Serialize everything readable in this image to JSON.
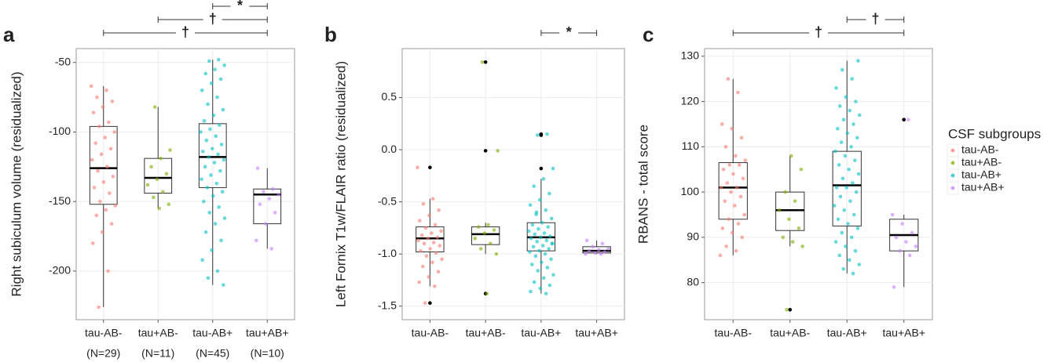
{
  "chart_data": [
    {
      "type": "box",
      "panel": "a",
      "ylabel": "Right subiculum volume (residualized)",
      "categories": [
        "tau-AB-",
        "tau+AB-",
        "tau-AB+",
        "tau+AB+"
      ],
      "n_labels": [
        "(N=29)",
        "(N=11)",
        "(N=45)",
        "(N=10)"
      ],
      "ylim": [
        -235,
        -40
      ],
      "yticks": [
        -50,
        -100,
        -150,
        -200
      ],
      "grid": true,
      "boxes": [
        {
          "whisker_low": -226,
          "q1": -152,
          "median": -126,
          "q3": -96,
          "whisker_high": -67,
          "outliers": []
        },
        {
          "whisker_low": -155,
          "q1": -144,
          "median": -133,
          "q3": -119,
          "whisker_high": -82,
          "outliers": []
        },
        {
          "whisker_low": -210,
          "q1": -140,
          "median": -118,
          "q3": -94,
          "whisker_high": -48,
          "outliers": []
        },
        {
          "whisker_low": -184,
          "q1": -166,
          "median": -145,
          "q3": -141,
          "whisker_high": -126,
          "outliers": []
        }
      ],
      "points": [
        [
          -67,
          -70,
          -75,
          -78,
          -82,
          -86,
          -93,
          -96,
          -100,
          -104,
          -108,
          -112,
          -116,
          -120,
          -125,
          -128,
          -132,
          -136,
          -140,
          -144,
          -150,
          -153,
          -156,
          -160,
          -166,
          -172,
          -180,
          -200,
          -226
        ],
        [
          -82,
          -113,
          -119,
          -125,
          -130,
          -134,
          -138,
          -143,
          -147,
          -152,
          -155
        ],
        [
          -48,
          -49,
          -52,
          -55,
          -58,
          -62,
          -65,
          -70,
          -75,
          -80,
          -84,
          -88,
          -92,
          -95,
          -98,
          -100,
          -103,
          -106,
          -109,
          -112,
          -114,
          -116,
          -118,
          -120,
          -122,
          -125,
          -128,
          -131,
          -134,
          -137,
          -140,
          -143,
          -146,
          -150,
          -154,
          -158,
          -162,
          -166,
          -172,
          -178,
          -185,
          -192,
          -200,
          -205,
          -210
        ],
        [
          -126,
          -141,
          -143,
          -145,
          -148,
          -152,
          -158,
          -166,
          -178,
          -184
        ]
      ],
      "comparisons": [
        {
          "groups": [
            "tau-AB-",
            "tau+AB+"
          ],
          "label": "†"
        },
        {
          "groups": [
            "tau+AB-",
            "tau+AB+"
          ],
          "label": "†"
        },
        {
          "groups": [
            "tau-AB+",
            "tau+AB+"
          ],
          "label": "*"
        }
      ]
    },
    {
      "type": "box",
      "panel": "b",
      "ylabel": "Left Fornix T1w/FLAIR ratio (residualized)",
      "categories": [
        "tau-AB-",
        "tau+AB-",
        "tau-AB+",
        "tau+AB+"
      ],
      "ylim": [
        -1.63,
        0.97
      ],
      "yticks": [
        0.5,
        {
          "value": 0,
          "label": "0.0"
        },
        -0.5,
        {
          "value": -1,
          "label": "-1.0"
        },
        -1.5
      ],
      "grid": true,
      "boxes": [
        {
          "whisker_low": -1.31,
          "q1": -0.98,
          "median": -0.85,
          "q3": -0.74,
          "whisker_high": -0.47,
          "outliers": [
            -0.17,
            -1.47
          ]
        },
        {
          "whisker_low": -1.0,
          "q1": -0.91,
          "median": -0.81,
          "q3": -0.74,
          "whisker_high": -0.7,
          "outliers": [
            0.84,
            -0.01,
            -1.38
          ]
        },
        {
          "whisker_low": -1.38,
          "q1": -0.97,
          "median": -0.84,
          "q3": -0.7,
          "whisker_high": -0.28,
          "outliers": [
            0.15,
            0.14,
            -0.18
          ]
        },
        {
          "whisker_low": -1.0,
          "q1": -0.99,
          "median": -0.97,
          "q3": -0.93,
          "whisker_high": -0.87,
          "outliers": []
        }
      ],
      "points": [
        [
          -0.17,
          -0.47,
          -0.52,
          -0.58,
          -0.63,
          -0.68,
          -0.72,
          -0.75,
          -0.78,
          -0.8,
          -0.82,
          -0.84,
          -0.85,
          -0.87,
          -0.89,
          -0.9,
          -0.92,
          -0.95,
          -0.97,
          -0.99,
          -1.02,
          -1.05,
          -1.08,
          -1.12,
          -1.17,
          -1.22,
          -1.27,
          -1.31,
          -1.47
        ],
        [
          0.84,
          -0.01,
          -0.72,
          -0.74,
          -0.77,
          -0.8,
          -0.85,
          -0.9,
          -0.95,
          -1.0,
          -1.38
        ],
        [
          0.15,
          0.14,
          -0.18,
          -0.28,
          -0.35,
          -0.42,
          -0.48,
          -0.53,
          -0.58,
          -0.62,
          -0.66,
          -0.7,
          -0.72,
          -0.74,
          -0.76,
          -0.78,
          -0.8,
          -0.81,
          -0.83,
          -0.84,
          -0.85,
          -0.87,
          -0.88,
          -0.9,
          -0.92,
          -0.93,
          -0.95,
          -0.97,
          -0.98,
          -1.0,
          -1.02,
          -1.05,
          -1.08,
          -1.1,
          -1.13,
          -1.16,
          -1.2,
          -1.23,
          -1.27,
          -1.3,
          -1.33,
          -1.36,
          -1.38,
          -0.6,
          -0.9
        ],
        [
          -0.87,
          -0.9,
          -0.93,
          -0.95,
          -0.96,
          -0.97,
          -0.98,
          -0.99,
          -1.0,
          -1.0
        ]
      ],
      "comparisons": [
        {
          "groups": [
            "tau-AB+",
            "tau+AB+"
          ],
          "label": "*"
        }
      ]
    },
    {
      "type": "box",
      "panel": "c",
      "ylabel": "RBANS - total score",
      "categories": [
        "tau-AB-",
        "tau+AB-",
        "tau-AB+",
        "tau+AB+"
      ],
      "ylim": [
        71.8,
        131.7
      ],
      "yticks": [
        130,
        120,
        110,
        100,
        90,
        80
      ],
      "grid": true,
      "boxes": [
        {
          "whisker_low": 86,
          "q1": 94,
          "median": 101,
          "q3": 106.5,
          "whisker_high": 125,
          "outliers": []
        },
        {
          "whisker_low": 88,
          "q1": 91.5,
          "median": 96,
          "q3": 100,
          "whisker_high": 108,
          "outliers": [
            74
          ]
        },
        {
          "whisker_low": 82,
          "q1": 92.5,
          "median": 101.5,
          "q3": 109,
          "whisker_high": 129,
          "outliers": []
        },
        {
          "whisker_low": 79,
          "q1": 87,
          "median": 90.5,
          "q3": 94,
          "whisker_high": 95,
          "outliers": [
            116
          ]
        }
      ],
      "points": [
        [
          86,
          87,
          88,
          90,
          91,
          92,
          93,
          94,
          95,
          97,
          98,
          99,
          100,
          101,
          101,
          102,
          103,
          104,
          105,
          106,
          106,
          107,
          108,
          110,
          112,
          114,
          115,
          122,
          125
        ],
        [
          74,
          88,
          89,
          90,
          92,
          94,
          96,
          98,
          100,
          105,
          108
        ],
        [
          82,
          83,
          84,
          85,
          86,
          87,
          88,
          89,
          90,
          91,
          92,
          93,
          94,
          95,
          96,
          97,
          98,
          99,
          100,
          101,
          101,
          102,
          103,
          104,
          105,
          106,
          107,
          108,
          109,
          110,
          111,
          112,
          113,
          114,
          115,
          116,
          117,
          118,
          119,
          120,
          121,
          123,
          125,
          127,
          129
        ],
        [
          79,
          86,
          87,
          88,
          89,
          90,
          91,
          93,
          95,
          116
        ]
      ],
      "comparisons": [
        {
          "groups": [
            "tau-AB-",
            "tau+AB+"
          ],
          "label": "†"
        },
        {
          "groups": [
            "tau-AB+",
            "tau+AB+"
          ],
          "label": "†"
        }
      ]
    }
  ],
  "legend": {
    "title": "CSF subgroups",
    "series": [
      {
        "name": "tau-AB-",
        "color": "#F8766D"
      },
      {
        "name": "tau+AB-",
        "color": "#7CAE00"
      },
      {
        "name": "tau-AB+",
        "color": "#00BFC4"
      },
      {
        "name": "tau+AB+",
        "color": "#C77CFF"
      }
    ]
  }
}
